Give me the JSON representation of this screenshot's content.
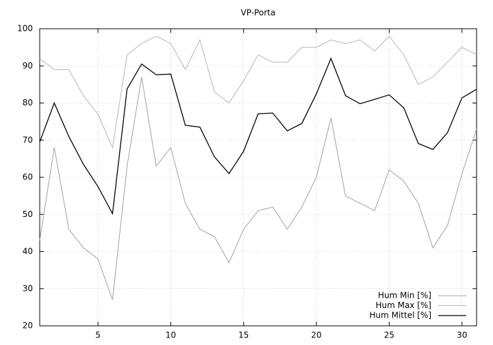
{
  "chart_data": {
    "type": "line",
    "title": "VP-Porta",
    "x": [
      1,
      2,
      3,
      4,
      5,
      6,
      7,
      8,
      9,
      10,
      11,
      12,
      13,
      14,
      15,
      16,
      17,
      18,
      19,
      20,
      21,
      22,
      23,
      24,
      25,
      26,
      27,
      28,
      29,
      30,
      31
    ],
    "series": [
      {
        "name": "Hum Min [%]",
        "color": "#a0a0a0",
        "values": [
          43,
          68,
          46,
          41,
          38,
          27,
          63,
          87,
          63,
          68,
          53,
          46,
          44,
          37,
          46,
          51,
          52,
          46,
          52,
          60,
          76,
          55,
          53,
          51,
          62,
          59,
          53,
          41,
          47,
          61,
          73
        ]
      },
      {
        "name": "Hum Max [%]",
        "color": "#b4b4b4",
        "values": [
          92,
          89,
          89,
          82,
          77,
          68,
          93,
          96,
          98,
          96,
          89,
          97,
          83,
          80,
          86,
          93,
          91,
          91,
          95,
          95,
          97,
          96,
          97,
          94,
          98,
          93,
          85,
          87,
          91,
          95,
          93
        ]
      },
      {
        "name": "Hum Mittel [%]",
        "color": "#000000",
        "values": [
          69.5,
          80,
          71,
          63.5,
          57.5,
          50.2,
          83.8,
          90.5,
          87.6,
          87.8,
          74,
          73.5,
          65.5,
          61,
          67,
          77.1,
          77.3,
          72.5,
          74.5,
          82.5,
          92,
          82,
          79.8,
          81,
          82.2,
          78.7,
          69.1,
          67.5,
          72,
          81.4,
          83.7
        ]
      }
    ],
    "xlim": [
      1,
      31
    ],
    "xticks": [
      5,
      10,
      15,
      20,
      25,
      30
    ],
    "ylim": [
      20,
      100
    ],
    "yticks": [
      20,
      30,
      40,
      50,
      60,
      70,
      80,
      90,
      100
    ],
    "grid": true,
    "legend": "bottom-right"
  }
}
